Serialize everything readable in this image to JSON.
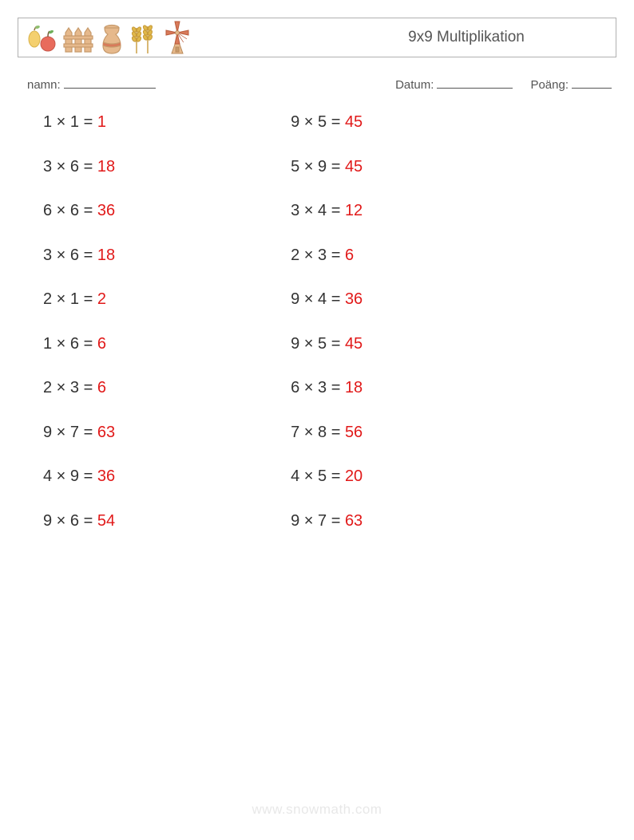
{
  "header": {
    "title": "9x9 Multiplikation",
    "border_color": "#b0b0b0",
    "title_color": "#555555",
    "title_fontsize": 19,
    "icons": [
      "pear-apple-icon",
      "fence-icon",
      "vase-icon",
      "wheat-icon",
      "windmill-icon"
    ]
  },
  "meta": {
    "name_label": "namn:",
    "date_label": "Datum:",
    "score_label": "Poäng:",
    "label_color": "#555555",
    "label_fontsize": 15,
    "blank_widths": {
      "name": 115,
      "date": 95,
      "score": 50
    }
  },
  "worksheet": {
    "type": "table",
    "equation_color": "#333333",
    "answer_color": "#e11919",
    "fontsize": 20,
    "operator": "×",
    "equals": "=",
    "row_gap": 32.5,
    "column_gap": 220,
    "columns": [
      [
        {
          "a": 1,
          "b": 1,
          "ans": 1
        },
        {
          "a": 3,
          "b": 6,
          "ans": 18
        },
        {
          "a": 6,
          "b": 6,
          "ans": 36
        },
        {
          "a": 3,
          "b": 6,
          "ans": 18
        },
        {
          "a": 2,
          "b": 1,
          "ans": 2
        },
        {
          "a": 1,
          "b": 6,
          "ans": 6
        },
        {
          "a": 2,
          "b": 3,
          "ans": 6
        },
        {
          "a": 9,
          "b": 7,
          "ans": 63
        },
        {
          "a": 4,
          "b": 9,
          "ans": 36
        },
        {
          "a": 9,
          "b": 6,
          "ans": 54
        }
      ],
      [
        {
          "a": 9,
          "b": 5,
          "ans": 45
        },
        {
          "a": 5,
          "b": 9,
          "ans": 45
        },
        {
          "a": 3,
          "b": 4,
          "ans": 12
        },
        {
          "a": 2,
          "b": 3,
          "ans": 6
        },
        {
          "a": 9,
          "b": 4,
          "ans": 36
        },
        {
          "a": 9,
          "b": 5,
          "ans": 45
        },
        {
          "a": 6,
          "b": 3,
          "ans": 18
        },
        {
          "a": 7,
          "b": 8,
          "ans": 56
        },
        {
          "a": 4,
          "b": 5,
          "ans": 20
        },
        {
          "a": 9,
          "b": 7,
          "ans": 63
        }
      ]
    ]
  },
  "watermark": {
    "text": "www.snowmath.com",
    "color": "#e8e8e8",
    "fontsize": 17
  },
  "palette": {
    "pear": "#f4d06f",
    "pear_leaf": "#8fbf6f",
    "apple": "#e86b5c",
    "apple_leaf": "#6fae5a",
    "fence": "#e6b98c",
    "fence_outline": "#c79a6b",
    "vase": "#e6b98c",
    "vase_band": "#d87a5a",
    "wheat": "#e0b84a",
    "wheat_stem": "#c79a3a",
    "windmill_blade": "#d87a5a",
    "windmill_body": "#e6b98c",
    "windmill_roof": "#c79a6b"
  }
}
